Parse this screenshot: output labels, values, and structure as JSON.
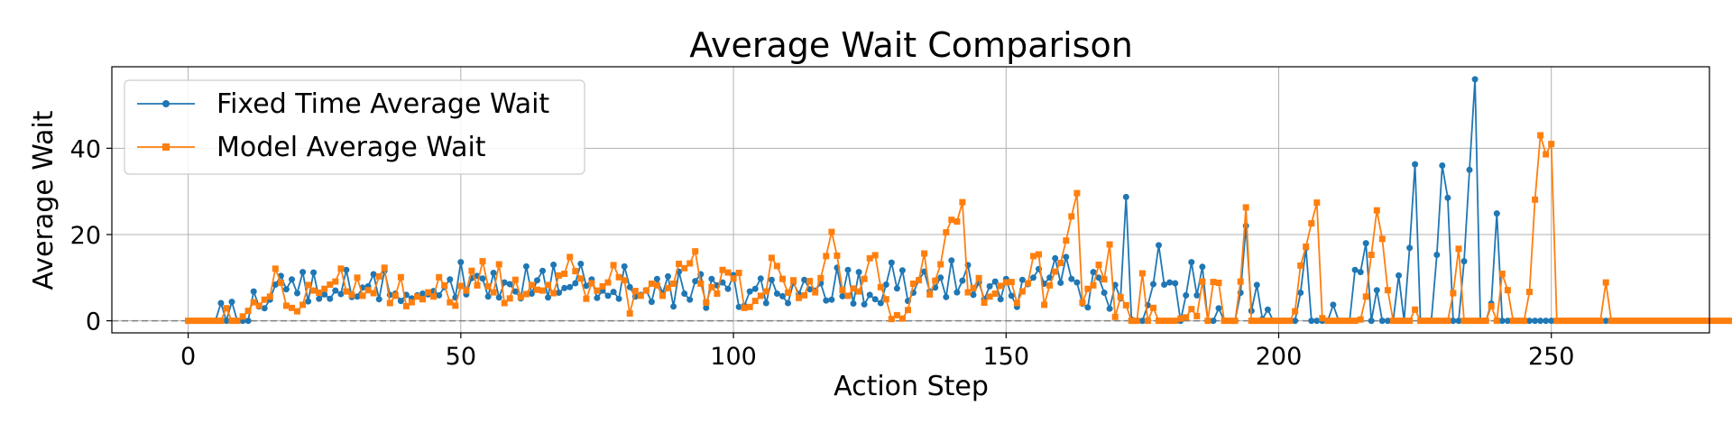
{
  "chart_data": {
    "type": "line",
    "title": "Average Wait Comparison",
    "xlabel": "Action Step",
    "ylabel": "Average Wait",
    "xlim": [
      -14,
      279
    ],
    "ylim": [
      -2.8,
      58.9
    ],
    "xticks": [
      0,
      50,
      100,
      150,
      200,
      250
    ],
    "yticks": [
      0,
      20,
      40
    ],
    "grid": true,
    "legend_position": "top-left",
    "reference_line": {
      "y": 0,
      "style": "dashed",
      "color": "#808080"
    },
    "series": [
      {
        "name": "Fixed Time Average Wait",
        "color": "#1f77b4",
        "marker": "circle",
        "x_start": 0,
        "values": [
          0,
          0,
          0,
          0,
          0,
          0,
          4.1,
          0,
          4.4,
          0,
          0,
          0,
          6.8,
          3.3,
          2.9,
          4.9,
          8.4,
          10.4,
          7.3,
          9.6,
          6.4,
          11.3,
          4.5,
          11.2,
          5.1,
          6.1,
          5.1,
          7.0,
          6.2,
          11.8,
          5.5,
          5.6,
          7.7,
          8.0,
          10.8,
          5.0,
          11.6,
          6.0,
          6.3,
          4.6,
          6.0,
          5.2,
          5.9,
          6.3,
          6.1,
          6.9,
          5.9,
          7.8,
          9.6,
          5.4,
          13.6,
          6.1,
          9.9,
          10.4,
          9.8,
          5.6,
          11.1,
          5.4,
          8.9,
          8.5,
          6.8,
          5.2,
          12.6,
          6.3,
          9.4,
          11.6,
          5.4,
          13.0,
          6.5,
          7.6,
          7.8,
          8.7,
          13.2,
          8.1,
          9.6,
          5.3,
          7.0,
          5.8,
          6.7,
          5.1,
          12.6,
          7.8,
          5.6,
          6.0,
          7.1,
          4.4,
          9.7,
          6.4,
          10.3,
          3.3,
          11.4,
          6.3,
          4.9,
          9.2,
          10.8,
          3.0,
          9.7,
          8.2,
          8.9,
          7.4,
          10.6,
          3.2,
          3.5,
          6.8,
          7.4,
          9.8,
          4.1,
          9.5,
          6.3,
          5.7,
          4.1,
          8.8,
          6.2,
          9.5,
          7.3,
          7.0,
          8.7,
          4.7,
          4.9,
          12.3,
          5.7,
          11.8,
          4.0,
          11.3,
          3.8,
          6.0,
          5.0,
          4.1,
          8.4,
          13.5,
          7.5,
          11.7,
          4.6,
          6.5,
          9.5,
          11.4,
          6.8,
          7.7,
          10.0,
          5.5,
          14.0,
          6.6,
          9.3,
          12.9,
          6.0,
          8.9,
          5.0,
          8.0,
          9.1,
          5.0,
          9.7,
          5.8,
          3.2,
          9.5,
          8.5,
          10.0,
          12.0,
          8.6,
          10.0,
          14.5,
          8.8,
          14.8,
          9.7,
          8.9,
          4.0,
          3.1,
          11.3,
          10.0,
          6.5,
          2.8,
          8.3,
          5.2,
          28.7,
          0.3,
          0,
          0,
          3.6,
          8.5,
          17.5,
          8.4,
          8.9,
          8.7,
          0,
          5.9,
          13.6,
          5.9,
          12.5,
          0,
          0,
          2.9,
          0,
          0,
          0,
          6.5,
          22.0,
          2.3,
          8.3,
          0.4,
          2.6,
          0,
          0,
          0,
          0,
          0,
          6.5,
          16.9,
          0,
          0,
          0,
          0,
          3.7,
          0,
          0,
          0,
          11.8,
          11.3,
          18.0,
          0,
          7.1,
          0,
          0,
          0,
          10.5,
          0,
          16.9,
          36.3,
          0,
          0,
          0,
          15.3,
          36.0,
          28.5,
          0,
          0,
          13.8,
          35.0,
          56.0,
          0,
          0,
          4.0,
          24.9,
          0,
          0,
          0,
          0,
          0,
          0,
          0,
          0,
          0,
          0,
          0,
          0,
          0,
          0,
          0,
          0,
          0,
          0,
          0,
          0,
          0,
          0,
          0,
          0,
          0,
          0,
          0,
          0,
          0,
          0,
          0,
          0,
          0,
          0,
          0,
          0,
          0,
          0
        ]
      },
      {
        "name": "Model Average Wait",
        "color": "#ff7f0e",
        "marker": "square",
        "x_start": 0,
        "values": [
          0,
          0,
          0,
          0,
          0,
          0,
          0,
          2.9,
          0,
          0,
          1.0,
          2.3,
          4.3,
          3.5,
          4.9,
          5.6,
          12.1,
          8.8,
          3.5,
          3.0,
          2.2,
          3.7,
          8.3,
          7.0,
          6.5,
          7.4,
          8.4,
          9.1,
          12.1,
          6.8,
          6.0,
          10.0,
          5.8,
          7.1,
          6.4,
          10.3,
          12.3,
          4.1,
          5.8,
          10.1,
          3.4,
          4.3,
          5.6,
          5.0,
          6.6,
          5.6,
          10.1,
          8.2,
          4.3,
          3.5,
          8.1,
          7.0,
          11.6,
          8.2,
          13.8,
          8.0,
          6.6,
          13.1,
          4.1,
          5.2,
          9.5,
          5.5,
          6.2,
          8.3,
          7.2,
          7.0,
          8.3,
          6.4,
          10.5,
          10.9,
          14.8,
          11.5,
          9.8,
          5.1,
          8.7,
          7.0,
          8.0,
          8.9,
          12.9,
          10.1,
          9.4,
          1.7,
          6.9,
          5.8,
          7.0,
          8.6,
          8.2,
          5.8,
          7.6,
          8.6,
          13.2,
          12.2,
          13.3,
          16.1,
          8.6,
          4.2,
          7.8,
          6.3,
          11.8,
          11.2,
          9.8,
          11.1,
          3.0,
          3.2,
          4.6,
          5.8,
          6.8,
          14.6,
          12.7,
          9.7,
          6.5,
          9.4,
          5.3,
          5.9,
          9.2,
          6.6,
          9.9,
          15.0,
          20.6,
          15.1,
          7.1,
          5.8,
          7.5,
          6.8,
          9.7,
          14.5,
          15.2,
          7.8,
          5.0,
          0.4,
          1.3,
          0.5,
          2.5,
          8.6,
          9.4,
          15.6,
          6.1,
          9.3,
          13.1,
          20.5,
          23.4,
          23.0,
          27.5,
          6.6,
          7.6,
          9.9,
          4.2,
          5.6,
          6.3,
          8.1,
          8.9,
          9.0,
          4.1,
          6.8,
          8.7,
          15.0,
          15.4,
          3.7,
          8.2,
          11.4,
          13.4,
          18.6,
          24.2,
          29.6,
          4.2,
          7.4,
          8.2,
          13.0,
          9.6,
          17.7,
          0.9,
          5.5,
          3.6,
          0,
          0,
          11.0,
          0,
          3.0,
          0,
          0,
          0,
          0,
          0.5,
          0.8,
          2.7,
          1.1,
          9.1,
          0,
          9.0,
          8.8,
          0,
          0,
          0,
          9.1,
          26.3,
          0,
          0,
          0,
          0,
          0,
          0,
          0,
          0,
          2.2,
          12.8,
          17.2,
          22.6,
          27.4,
          0.6,
          0,
          0,
          0,
          0,
          0,
          0,
          0.3,
          5.6,
          15.3,
          25.6,
          19.0,
          7.1,
          0,
          0,
          0,
          0,
          2.6,
          0,
          0,
          0,
          0,
          0,
          0,
          6.4,
          16.7,
          0,
          0,
          0,
          0,
          0,
          3.4,
          0,
          10.9,
          7.1,
          0,
          0,
          0,
          6.7,
          28.1,
          43.0,
          38.6,
          41.0,
          0,
          0,
          0,
          0,
          0,
          0,
          0,
          0,
          0,
          8.9,
          0,
          0,
          0,
          0,
          0,
          0,
          0,
          0,
          0,
          0,
          0,
          0,
          0,
          0,
          0,
          0,
          0,
          0,
          0,
          0,
          0,
          0,
          0,
          0,
          0
        ]
      }
    ]
  }
}
